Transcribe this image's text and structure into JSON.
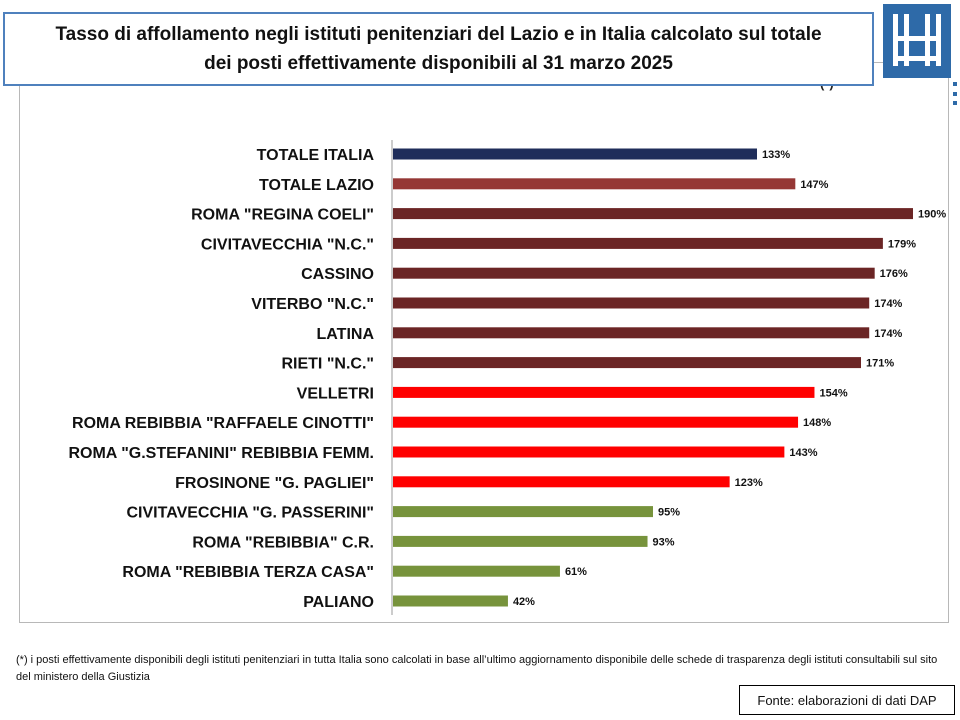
{
  "title": "Tasso di affollamento negli istituti penitenziari del Lazio e in Italia calcolato sul totale\ndei posti effettivamente disponibili al 31 marzo 2025",
  "corner_mark": "(*)",
  "colors": {
    "italia": "#1f2d5a",
    "lazio": "#953735",
    "high": "#6b2525",
    "red": "#ff0000",
    "green": "#77933c",
    "logo": "#2e6aa8"
  },
  "chart_data": {
    "type": "bar",
    "orientation": "horizontal",
    "categories": [
      "TOTALE ITALIA",
      "TOTALE LAZIO",
      "ROMA \"REGINA COELI\"",
      "CIVITAVECCHIA \"N.C.\"",
      "CASSINO",
      "VITERBO \"N.C.\"",
      "LATINA",
      "RIETI \"N.C.\"",
      "VELLETRI",
      "ROMA REBIBBIA \"RAFFAELE CINOTTI\"",
      "ROMA \"G.STEFANINI\" REBIBBIA FEMM.",
      "FROSINONE \"G. PAGLIEI\"",
      "CIVITAVECCHIA \"G. PASSERINI\"",
      "ROMA \"REBIBBIA\" C.R.",
      "ROMA \"REBIBBIA TERZA CASA\"",
      "PALIANO"
    ],
    "values": [
      133,
      147,
      190,
      179,
      176,
      174,
      174,
      171,
      154,
      148,
      143,
      123,
      95,
      93,
      61,
      42
    ],
    "value_labels": [
      "133%",
      "147%",
      "190%",
      "179%",
      "176%",
      "174%",
      "174%",
      "171%",
      "154%",
      "148%",
      "143%",
      "123%",
      "95%",
      "93%",
      "61%",
      "42%"
    ],
    "bar_colors": [
      "#1f2d5a",
      "#953735",
      "#6b2525",
      "#6b2525",
      "#6b2525",
      "#6b2525",
      "#6b2525",
      "#6b2525",
      "#ff0000",
      "#ff0000",
      "#ff0000",
      "#ff0000",
      "#77933c",
      "#77933c",
      "#77933c",
      "#77933c"
    ],
    "unit": "%",
    "xlim": [
      0,
      190
    ],
    "grid": false,
    "legend": "none"
  },
  "footnote": "(*) i posti effettivamente disponibili  degli istituti penitenziari in tutta Italia sono calcolati in base all’ultimo aggiornamento disponibile  delle schede di trasparenza degli istituti consultabili sul sito del ministero della Giustizia",
  "source": "Fonte: elaborazioni di dati DAP"
}
